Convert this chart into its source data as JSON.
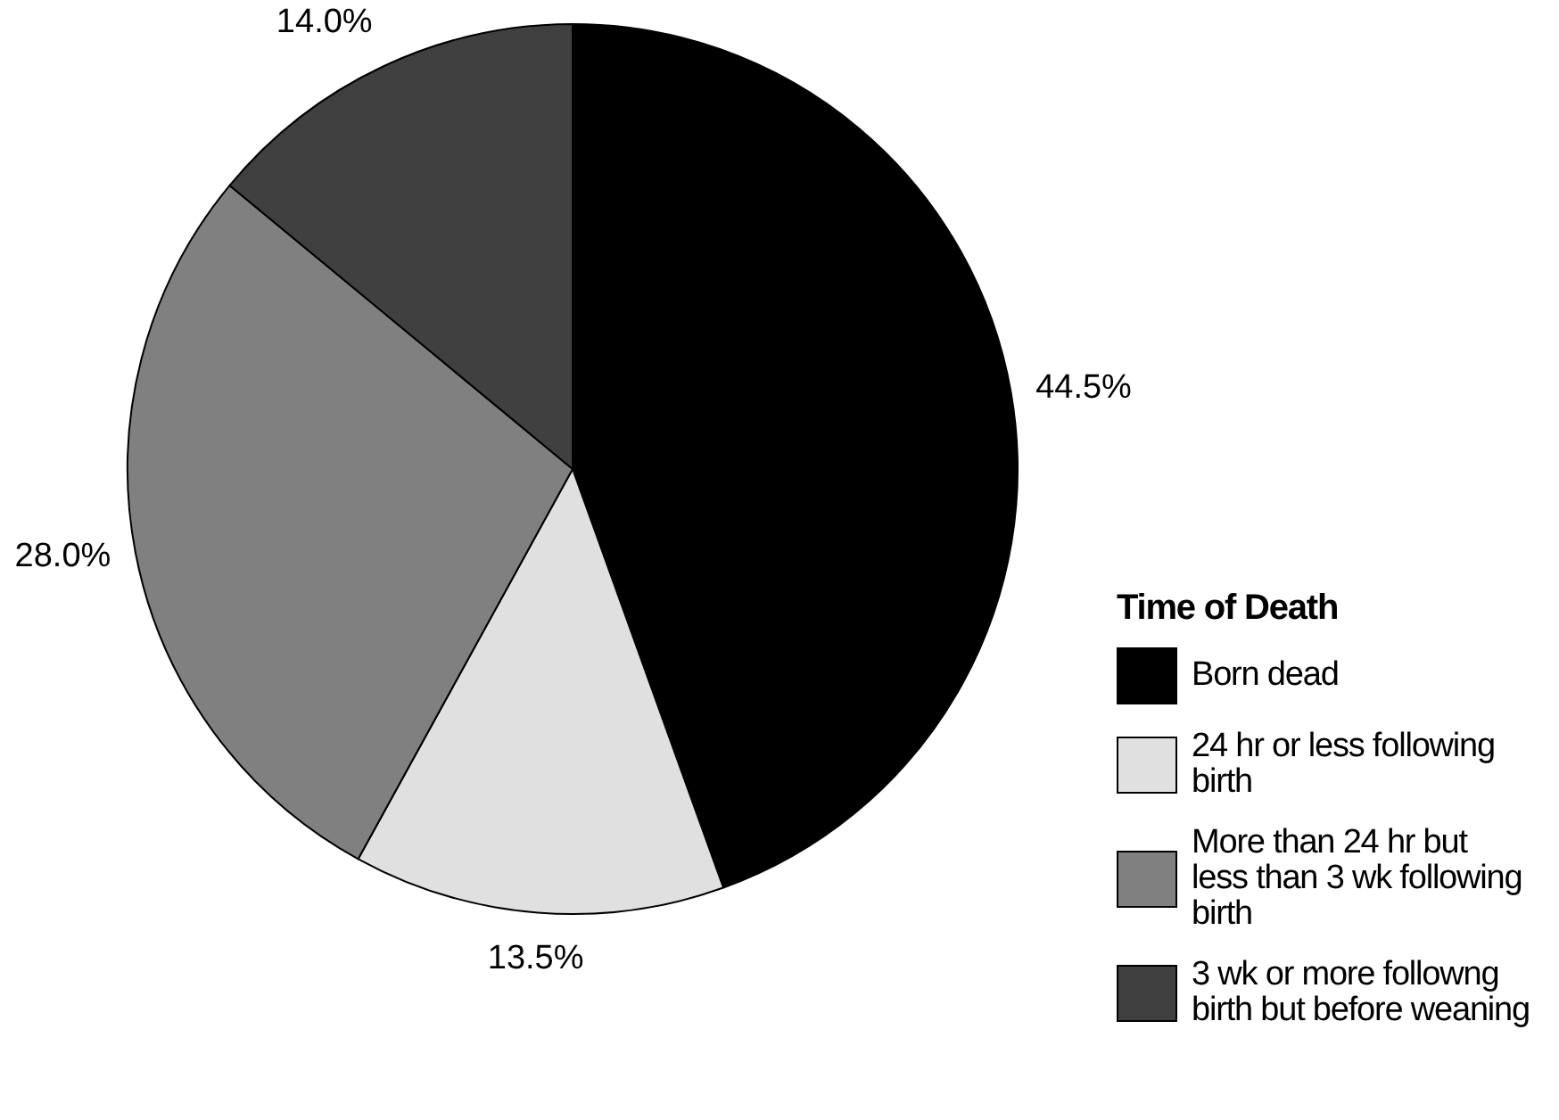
{
  "chart_data": {
    "type": "pie",
    "legend_title": "Time of Death",
    "categories": [
      "Born dead",
      "24 hr or less following birth",
      "More than 24 hr but less than 3 wk following birth",
      "3 wk or more followng birth but before weaning"
    ],
    "values": [
      44.5,
      13.5,
      28.0,
      14.0
    ],
    "colors": [
      "#000000",
      "#e0e0e0",
      "#808080",
      "#404040"
    ],
    "value_labels": [
      "44.5%",
      "13.5%",
      "28.0%",
      "14.0%"
    ],
    "legend": "right"
  }
}
